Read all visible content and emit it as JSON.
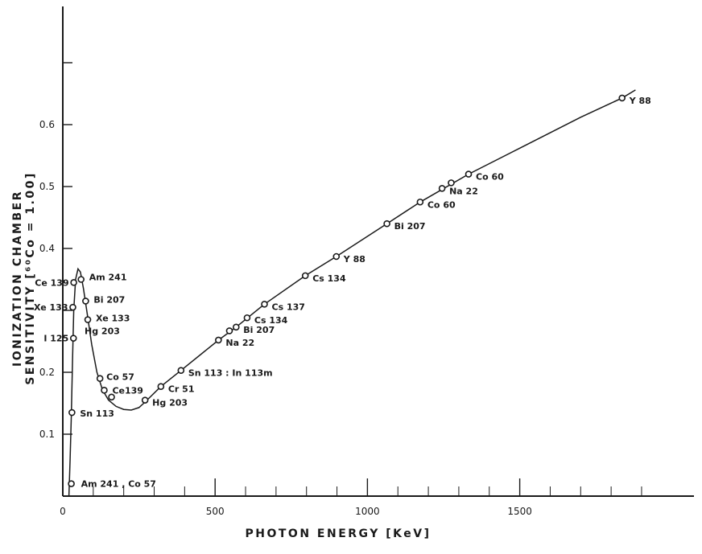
{
  "chart_data": {
    "type": "scatter",
    "xlabel": "PHOTON ENERGY [KeV]",
    "ylabel": "IONIZATION CHAMBER SENSITIVITY [⁶⁰Co = 1.00]",
    "xlim": [
      0,
      2050
    ],
    "ylim": [
      0,
      0.75
    ],
    "x_ticks": [
      {
        "value": 0,
        "label": "0"
      },
      {
        "value": 500,
        "label": "500"
      },
      {
        "value": 1000,
        "label": "1000"
      },
      {
        "value": 1500,
        "label": "1500"
      }
    ],
    "y_ticks": [
      {
        "value": 0.1,
        "label": "0.1"
      },
      {
        "value": 0.2,
        "label": "0.2"
      },
      {
        "value": 0.3,
        "label": ""
      },
      {
        "value": 0.4,
        "label": "0.4"
      },
      {
        "value": 0.5,
        "label": "0.5"
      },
      {
        "value": 0.6,
        "label": "0.6"
      },
      {
        "value": 0.7,
        "label": ""
      }
    ],
    "points": [
      {
        "x": 28,
        "y": 0.02,
        "label": "Am 241 , Co 57"
      },
      {
        "x": 30,
        "y": 0.135,
        "label": "Sn 113"
      },
      {
        "x": 35,
        "y": 0.255,
        "label": "I 125"
      },
      {
        "x": 33,
        "y": 0.305,
        "label": "Xe 133"
      },
      {
        "x": 36,
        "y": 0.345,
        "label": "Ce 139"
      },
      {
        "x": 60,
        "y": 0.35,
        "label": "Am 241"
      },
      {
        "x": 75,
        "y": 0.315,
        "label": "Bi 207"
      },
      {
        "x": 82,
        "y": 0.285,
        "label": "Hg 203"
      },
      {
        "x": 122,
        "y": 0.19,
        "label": "Co 57"
      },
      {
        "x": 136,
        "y": 0.171,
        "label": "Ce139"
      },
      {
        "x": 160,
        "y": 0.16,
        "label": ""
      },
      {
        "x": 270,
        "y": 0.155,
        "label": "Hg 203"
      },
      {
        "x": 322,
        "y": 0.177,
        "label": "Cr 51"
      },
      {
        "x": 388,
        "y": 0.203,
        "label": "Sn 113 : In 113m"
      },
      {
        "x": 511,
        "y": 0.252,
        "label": "Na 22"
      },
      {
        "x": 547,
        "y": 0.267,
        "label": ""
      },
      {
        "x": 569,
        "y": 0.273,
        "label": "Bi 207"
      },
      {
        "x": 605,
        "y": 0.288,
        "label": "Cs 134"
      },
      {
        "x": 662,
        "y": 0.31,
        "label": "Cs 137"
      },
      {
        "x": 796,
        "y": 0.356,
        "label": "Cs 134"
      },
      {
        "x": 898,
        "y": 0.387,
        "label": "Y 88"
      },
      {
        "x": 1064,
        "y": 0.44,
        "label": "Bi 207"
      },
      {
        "x": 1173,
        "y": 0.475,
        "label": "Co 60"
      },
      {
        "x": 1245,
        "y": 0.497,
        "label": "Na 22"
      },
      {
        "x": 1275,
        "y": 0.506,
        "label": ""
      },
      {
        "x": 1332,
        "y": 0.52,
        "label": "Co 60"
      },
      {
        "x": 1836,
        "y": 0.643,
        "label": "Y 88"
      }
    ],
    "curve": [
      [
        20,
        0.0
      ],
      [
        24,
        0.06
      ],
      [
        28,
        0.13
      ],
      [
        32,
        0.22
      ],
      [
        36,
        0.3
      ],
      [
        42,
        0.35
      ],
      [
        50,
        0.367
      ],
      [
        58,
        0.362
      ],
      [
        68,
        0.335
      ],
      [
        80,
        0.295
      ],
      [
        95,
        0.245
      ],
      [
        112,
        0.2
      ],
      [
        130,
        0.172
      ],
      [
        150,
        0.155
      ],
      [
        175,
        0.145
      ],
      [
        200,
        0.14
      ],
      [
        225,
        0.139
      ],
      [
        250,
        0.143
      ],
      [
        270,
        0.152
      ],
      [
        322,
        0.177
      ],
      [
        388,
        0.203
      ],
      [
        511,
        0.252
      ],
      [
        569,
        0.273
      ],
      [
        662,
        0.31
      ],
      [
        796,
        0.356
      ],
      [
        898,
        0.387
      ],
      [
        1064,
        0.44
      ],
      [
        1173,
        0.475
      ],
      [
        1332,
        0.52
      ],
      [
        1500,
        0.562
      ],
      [
        1700,
        0.612
      ],
      [
        1836,
        0.643
      ],
      [
        1880,
        0.656
      ]
    ],
    "grid": false,
    "colors": {
      "ink": "#1a1a1a",
      "background": "#ffffff"
    }
  }
}
